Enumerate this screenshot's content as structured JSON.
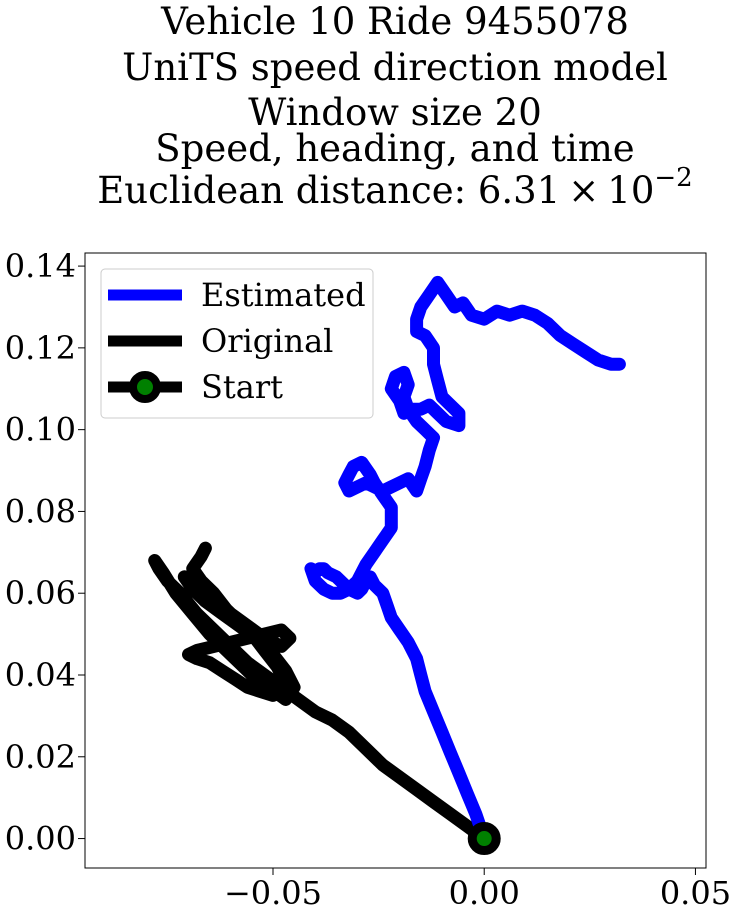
{
  "chart_data": {
    "type": "line",
    "title_lines": [
      "Vehicle 10 Ride 9455078",
      "UniTS speed direction model",
      "Window size 20",
      "Speed, heading, and time"
    ],
    "title_metric_prefix": "Euclidean distance: ",
    "title_metric_mantissa": "6.31",
    "title_metric_times": "×",
    "title_metric_base": "10",
    "title_metric_exponent": "−2",
    "xlabel": "",
    "ylabel": "",
    "xlim": [
      -0.0945,
      0.0525
    ],
    "ylim": [
      -0.0072,
      0.1432
    ],
    "xticks": [
      -0.05,
      0.0,
      0.05
    ],
    "xtick_labels": [
      "−0.05",
      "0.00",
      "0.05"
    ],
    "yticks": [
      0.0,
      0.02,
      0.04,
      0.06,
      0.08,
      0.1,
      0.12,
      0.14
    ],
    "ytick_labels": [
      "0.00",
      "0.02",
      "0.04",
      "0.06",
      "0.08",
      "0.10",
      "0.12",
      "0.14"
    ],
    "grid": false,
    "legend_position": "top-left",
    "series": [
      {
        "name": "Estimated",
        "color": "#0000ff",
        "x": [
          0.0,
          -0.002,
          -0.004,
          -0.006,
          -0.008,
          -0.01,
          -0.012,
          -0.014,
          -0.015,
          -0.016,
          -0.018,
          -0.02,
          -0.022,
          -0.023,
          -0.024,
          -0.026,
          -0.027,
          -0.028,
          -0.029,
          -0.03,
          -0.032,
          -0.033,
          -0.035,
          -0.037,
          -0.038,
          -0.039,
          -0.04,
          -0.041,
          -0.04,
          -0.038,
          -0.036,
          -0.034,
          -0.032,
          -0.03,
          -0.028,
          -0.026,
          -0.024,
          -0.022,
          -0.022,
          -0.024,
          -0.026,
          -0.027,
          -0.029,
          -0.031,
          -0.032,
          -0.033,
          -0.032,
          -0.03,
          -0.028,
          -0.026,
          -0.024,
          -0.022,
          -0.02,
          -0.018,
          -0.016,
          -0.015,
          -0.014,
          -0.013,
          -0.012,
          -0.014,
          -0.016,
          -0.018,
          -0.019,
          -0.018,
          -0.019,
          -0.021,
          -0.022,
          -0.02,
          -0.019,
          -0.017,
          -0.015,
          -0.013,
          -0.011,
          -0.009,
          -0.006,
          -0.006,
          -0.008,
          -0.01,
          -0.011,
          -0.012,
          -0.012,
          -0.014,
          -0.016,
          -0.016,
          -0.015,
          -0.013,
          -0.011,
          -0.009,
          -0.007,
          -0.005,
          -0.003,
          0.0,
          0.003,
          0.006,
          0.009,
          0.012,
          0.015,
          0.018,
          0.021,
          0.024,
          0.027,
          0.03,
          0.032
        ],
        "y": [
          0.0,
          0.006,
          0.011,
          0.016,
          0.021,
          0.026,
          0.031,
          0.036,
          0.04,
          0.044,
          0.048,
          0.051,
          0.054,
          0.057,
          0.06,
          0.062,
          0.064,
          0.063,
          0.061,
          0.06,
          0.061,
          0.062,
          0.064,
          0.065,
          0.066,
          0.066,
          0.065,
          0.066,
          0.063,
          0.061,
          0.06,
          0.06,
          0.061,
          0.063,
          0.067,
          0.07,
          0.073,
          0.076,
          0.081,
          0.084,
          0.087,
          0.089,
          0.092,
          0.091,
          0.089,
          0.087,
          0.085,
          0.086,
          0.087,
          0.086,
          0.085,
          0.086,
          0.087,
          0.088,
          0.085,
          0.088,
          0.091,
          0.095,
          0.098,
          0.1,
          0.102,
          0.105,
          0.108,
          0.111,
          0.114,
          0.113,
          0.11,
          0.107,
          0.104,
          0.105,
          0.105,
          0.106,
          0.104,
          0.102,
          0.101,
          0.104,
          0.106,
          0.108,
          0.112,
          0.116,
          0.12,
          0.123,
          0.124,
          0.127,
          0.13,
          0.133,
          0.136,
          0.133,
          0.13,
          0.131,
          0.128,
          0.127,
          0.129,
          0.128,
          0.129,
          0.128,
          0.126,
          0.123,
          0.121,
          0.119,
          0.117,
          0.116,
          0.116
        ]
      },
      {
        "name": "Original",
        "color": "#000000",
        "x": [
          0.0,
          -0.004,
          -0.008,
          -0.012,
          -0.016,
          -0.02,
          -0.024,
          -0.028,
          -0.032,
          -0.036,
          -0.04,
          -0.044,
          -0.048,
          -0.052,
          -0.056,
          -0.06,
          -0.064,
          -0.068,
          -0.072,
          -0.075,
          -0.077,
          -0.078,
          -0.076,
          -0.073,
          -0.069,
          -0.065,
          -0.061,
          -0.058,
          -0.055,
          -0.051,
          -0.047,
          -0.045,
          -0.047,
          -0.05,
          -0.054,
          -0.058,
          -0.062,
          -0.066,
          -0.069,
          -0.071,
          -0.068,
          -0.064,
          -0.06,
          -0.056,
          -0.052,
          -0.048,
          -0.046,
          -0.048,
          -0.052,
          -0.056,
          -0.06,
          -0.064,
          -0.068,
          -0.07,
          -0.068,
          -0.065,
          -0.062,
          -0.059,
          -0.056,
          -0.053,
          -0.05,
          -0.048,
          -0.047,
          -0.049,
          -0.052,
          -0.055,
          -0.058,
          -0.061,
          -0.064,
          -0.067,
          -0.069,
          -0.067,
          -0.066
        ],
        "y": [
          0.0,
          0.003,
          0.006,
          0.009,
          0.012,
          0.015,
          0.018,
          0.022,
          0.026,
          0.029,
          0.031,
          0.034,
          0.037,
          0.04,
          0.043,
          0.047,
          0.051,
          0.055,
          0.06,
          0.063,
          0.066,
          0.068,
          0.065,
          0.06,
          0.055,
          0.05,
          0.046,
          0.043,
          0.04,
          0.037,
          0.034,
          0.037,
          0.041,
          0.045,
          0.049,
          0.052,
          0.055,
          0.058,
          0.061,
          0.064,
          0.062,
          0.059,
          0.055,
          0.052,
          0.049,
          0.047,
          0.049,
          0.051,
          0.05,
          0.049,
          0.048,
          0.047,
          0.046,
          0.045,
          0.044,
          0.043,
          0.041,
          0.039,
          0.037,
          0.036,
          0.035,
          0.036,
          0.038,
          0.042,
          0.046,
          0.05,
          0.053,
          0.056,
          0.06,
          0.063,
          0.066,
          0.069,
          0.071
        ]
      }
    ],
    "start_marker": {
      "name": "Start",
      "x": 0.0,
      "y": 0.0,
      "fill_color": "#008000",
      "edge_color": "#000000"
    }
  }
}
